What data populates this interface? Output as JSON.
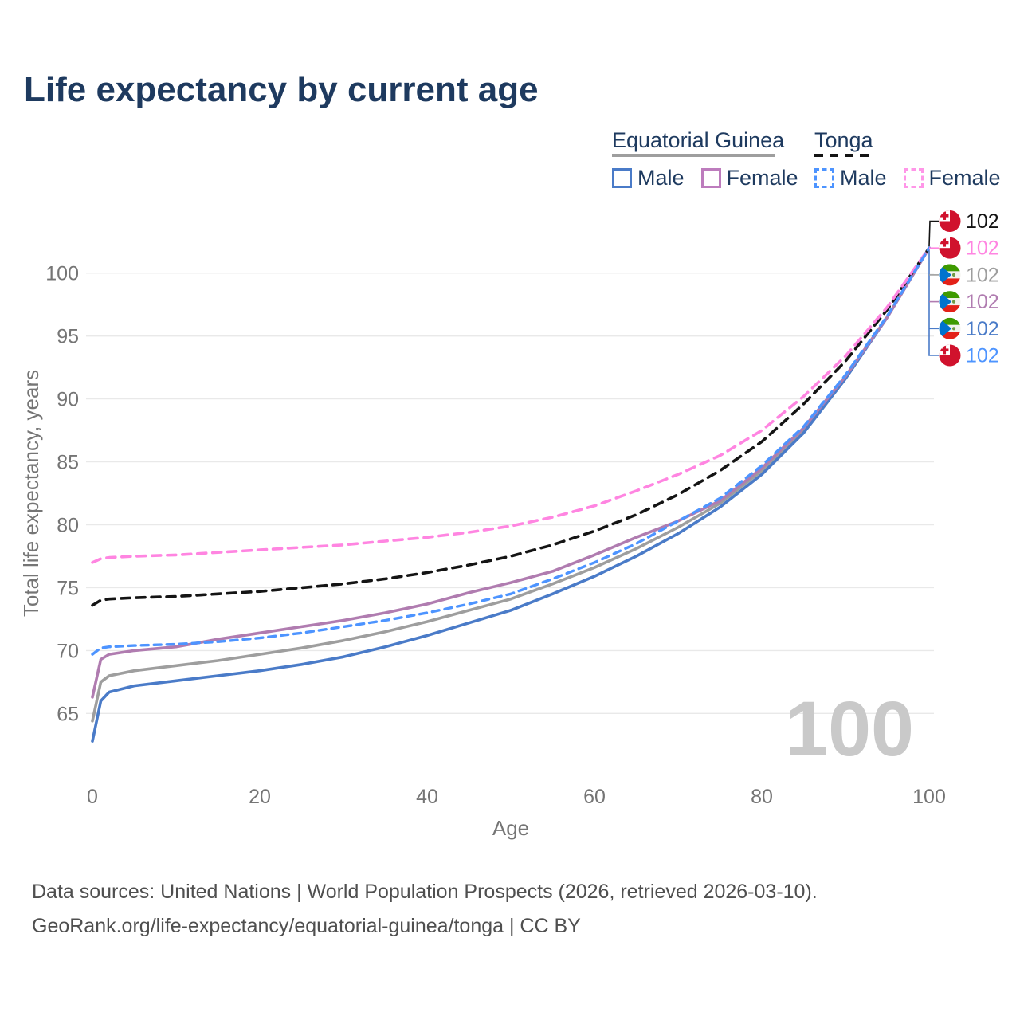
{
  "title": "Life expectancy by current age",
  "legend": {
    "groups": [
      {
        "label": "Equatorial Guinea",
        "underline": "solid",
        "items": [
          {
            "label": "Male"
          },
          {
            "label": "Female"
          }
        ]
      },
      {
        "label": "Tonga",
        "underline": "dashed",
        "items": [
          {
            "label": "Male"
          },
          {
            "label": "Female"
          }
        ]
      }
    ]
  },
  "watermark": "100",
  "footer": {
    "line1": "Data sources: United Nations | World Population Prospects (2026, retrieved 2026-03-10).",
    "line2": "GeoRank.org/life-expectancy/equatorial-guinea/tonga | CC BY"
  },
  "colors": {
    "title_text": "#1e3a5f",
    "axis_text": "#757575",
    "gridline": "#e9e9e9",
    "watermark": "#c9c9c9",
    "footer_text": "#4f4f4f",
    "eg_male": "#4a7bc8",
    "eg_female": "#b07cb0",
    "eg_both": "#9e9e9e",
    "tonga_male": "#4d94ff",
    "tonga_female": "#ff85e1",
    "tonga_both": "#141414"
  },
  "chart_data": {
    "type": "line",
    "title": "Life expectancy by current age",
    "xlabel": "Age",
    "ylabel": "Total life expectancy, years",
    "x_ticks": [
      0,
      20,
      40,
      60,
      80,
      100
    ],
    "y_ticks": [
      65,
      70,
      75,
      80,
      85,
      90,
      95,
      100
    ],
    "xlim": [
      0,
      100
    ],
    "ylim": [
      62,
      103.5
    ],
    "grid": "horizontal",
    "legend_position": "top-right",
    "ages": [
      0,
      1,
      2,
      5,
      10,
      15,
      20,
      25,
      30,
      35,
      40,
      45,
      50,
      55,
      60,
      65,
      70,
      75,
      80,
      85,
      90,
      95,
      100
    ],
    "series": [
      {
        "name": "Equatorial Guinea (both sexes)",
        "country": "equatorial-guinea",
        "colorKey": "eg_both",
        "dash": null,
        "width": 3.6,
        "values": [
          64.4,
          67.5,
          68.0,
          68.4,
          68.8,
          69.2,
          69.7,
          70.2,
          70.8,
          71.5,
          72.3,
          73.2,
          74.1,
          75.3,
          76.6,
          78.1,
          79.8,
          81.7,
          84.3,
          87.5,
          91.7,
          96.5,
          102
        ]
      },
      {
        "name": "Equatorial Guinea Male",
        "country": "equatorial-guinea",
        "colorKey": "eg_male",
        "dash": null,
        "width": 3.6,
        "values": [
          62.8,
          66.0,
          66.7,
          67.2,
          67.6,
          68.0,
          68.4,
          68.9,
          69.5,
          70.3,
          71.2,
          72.2,
          73.2,
          74.5,
          75.9,
          77.5,
          79.3,
          81.4,
          84.0,
          87.3,
          91.6,
          96.5,
          102
        ]
      },
      {
        "name": "Equatorial Guinea Female",
        "country": "equatorial-guinea",
        "colorKey": "eg_female",
        "dash": null,
        "width": 3.6,
        "values": [
          66.3,
          69.3,
          69.7,
          70.0,
          70.3,
          70.9,
          71.4,
          71.9,
          72.4,
          73.0,
          73.7,
          74.6,
          75.4,
          76.3,
          77.6,
          79.0,
          80.3,
          81.9,
          84.5,
          87.7,
          91.8,
          96.5,
          102
        ]
      },
      {
        "name": "Tonga (both sexes)",
        "country": "tonga",
        "colorKey": "tonga_both",
        "dash": "11 8",
        "width": 3.6,
        "values": [
          73.6,
          74.0,
          74.1,
          74.2,
          74.3,
          74.5,
          74.7,
          75.0,
          75.3,
          75.7,
          76.2,
          76.8,
          77.5,
          78.4,
          79.5,
          80.8,
          82.4,
          84.3,
          86.6,
          89.6,
          93.0,
          97.1,
          102
        ]
      },
      {
        "name": "Tonga Female",
        "country": "tonga",
        "colorKey": "tonga_female",
        "dash": "11 8",
        "width": 3.6,
        "values": [
          77.0,
          77.3,
          77.4,
          77.5,
          77.6,
          77.8,
          78.0,
          78.2,
          78.4,
          78.7,
          79.0,
          79.4,
          79.9,
          80.6,
          81.5,
          82.7,
          84.0,
          85.5,
          87.5,
          90.2,
          93.4,
          97.3,
          102
        ]
      },
      {
        "name": "Tonga Male",
        "country": "tonga",
        "colorKey": "tonga_male",
        "dash": "9 7",
        "width": 3.4,
        "values": [
          69.7,
          70.2,
          70.3,
          70.4,
          70.5,
          70.7,
          71.0,
          71.4,
          71.9,
          72.4,
          73.0,
          73.7,
          74.5,
          75.7,
          77.0,
          78.5,
          80.3,
          82.1,
          84.7,
          87.8,
          91.9,
          96.6,
          102
        ]
      }
    ],
    "end_labels": [
      {
        "flag": "tonga",
        "colorKey": "tonga_both",
        "value": "102"
      },
      {
        "flag": "tonga",
        "colorKey": "tonga_female",
        "value": "102"
      },
      {
        "flag": "equatorial-guinea",
        "colorKey": "eg_both",
        "value": "102"
      },
      {
        "flag": "equatorial-guinea",
        "colorKey": "eg_female",
        "value": "102"
      },
      {
        "flag": "equatorial-guinea",
        "colorKey": "eg_male",
        "value": "102"
      },
      {
        "flag": "tonga",
        "colorKey": "tonga_male",
        "value": "102"
      }
    ]
  }
}
